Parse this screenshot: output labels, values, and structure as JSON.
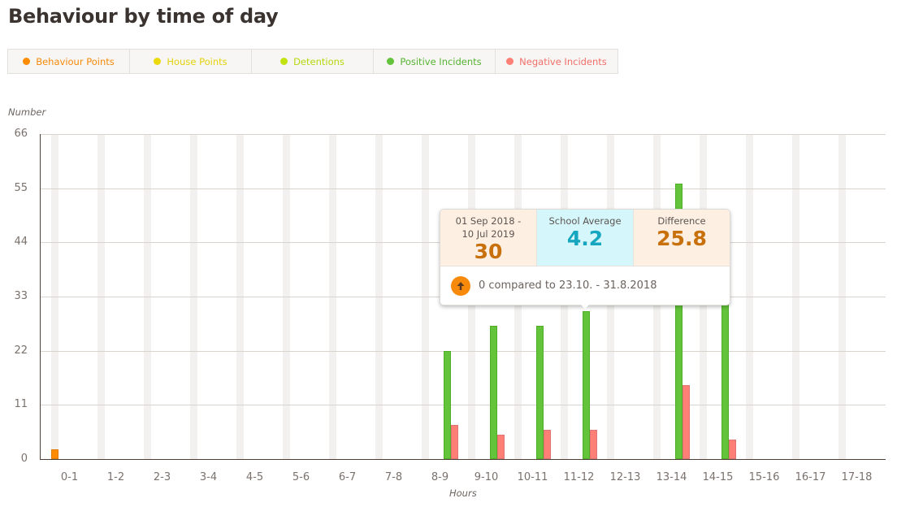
{
  "title": "Behaviour by time of day",
  "legend": [
    {
      "label": "Behaviour Points",
      "color": "#ff8b00",
      "text_color": "#f5890a"
    },
    {
      "label": "House Points",
      "color": "#ecd90c",
      "text_color": "#e3d20c"
    },
    {
      "label": "Detentions",
      "color": "#c3e30e",
      "text_color": "#b5d70f"
    },
    {
      "label": "Positive Incidents",
      "color": "#63c33a",
      "text_color": "#56b332"
    },
    {
      "label": "Negative Incidents",
      "color": "#fd7f76",
      "text_color": "#f26f6a"
    }
  ],
  "tooltip": {
    "period_label_line1": "01 Sep 2018 -",
    "period_label_line2": "10 Jul 2019",
    "period_value": "30",
    "average_label": "School Average",
    "average_value": "4.2",
    "difference_label": "Difference",
    "difference_value": "25.8",
    "comparison_text": "0 compared to 23.10. - 31.8.2018",
    "comparison_icon": "arrow-up-icon"
  },
  "chart_data": {
    "type": "bar",
    "title": "Behaviour by time of day",
    "xlabel": "Hours",
    "ylabel": "Number",
    "ylim": [
      0,
      66
    ],
    "yticks": [
      0,
      11,
      22,
      33,
      44,
      55,
      66
    ],
    "grid": true,
    "legend_position": "top",
    "categories": [
      "0-1",
      "1-2",
      "2-3",
      "3-4",
      "4-5",
      "5-6",
      "6-7",
      "7-8",
      "8-9",
      "9-10",
      "10-11",
      "11-12",
      "12-13",
      "13-14",
      "14-15",
      "15-16",
      "16-17",
      "17-18"
    ],
    "series": [
      {
        "name": "Behaviour Points",
        "color": "#ff8b00",
        "values": [
          2,
          0,
          0,
          0,
          0,
          0,
          0,
          0,
          0,
          0,
          0,
          0,
          0,
          0,
          0,
          0,
          0,
          0
        ]
      },
      {
        "name": "House Points",
        "color": "#ecd90c",
        "values": [
          0,
          0,
          0,
          0,
          0,
          0,
          0,
          0,
          0,
          0,
          0,
          0,
          0,
          0,
          0,
          0,
          0,
          0
        ]
      },
      {
        "name": "Detentions",
        "color": "#c3e30e",
        "values": [
          0,
          0,
          0,
          0,
          0,
          0,
          0,
          0,
          0,
          0,
          0,
          0,
          0,
          0,
          0,
          0,
          0,
          0
        ]
      },
      {
        "name": "Positive Incidents",
        "color": "#63c33a",
        "values": [
          0,
          0,
          0,
          0,
          0,
          0,
          0,
          0,
          22,
          27,
          27,
          30,
          0,
          56,
          35,
          0,
          0,
          0
        ]
      },
      {
        "name": "Negative Incidents",
        "color": "#fd7f76",
        "values": [
          0,
          0,
          0,
          0,
          0,
          0,
          0,
          0,
          7,
          5,
          6,
          6,
          0,
          15,
          4,
          0,
          0,
          0
        ]
      }
    ],
    "annotations": [
      {
        "type": "tooltip",
        "category": "11-12",
        "series": "Positive Incidents",
        "value": 30,
        "school_average": 4.2,
        "difference": 25.8
      }
    ]
  }
}
